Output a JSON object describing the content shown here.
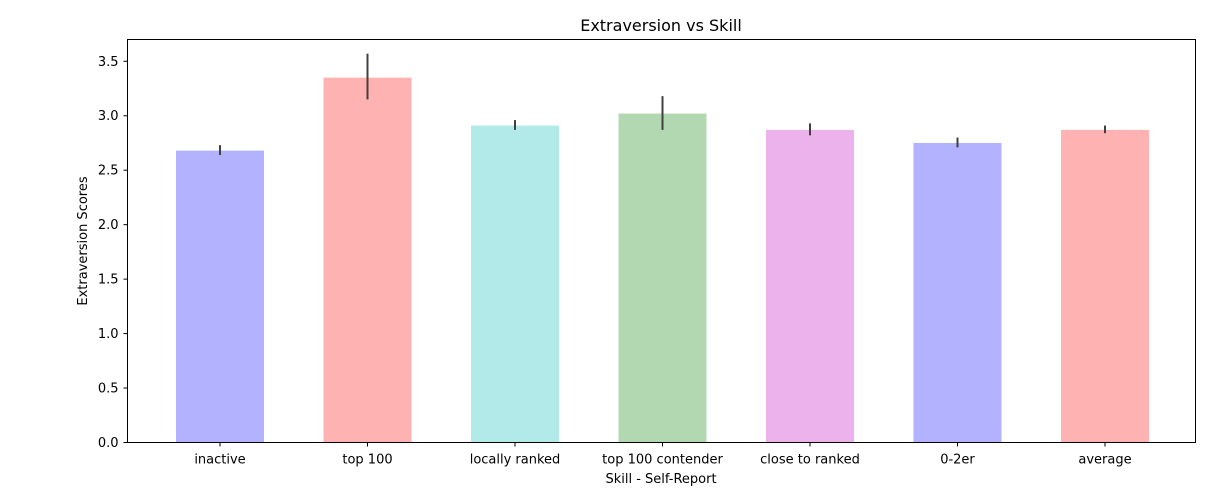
{
  "chart_data": {
    "type": "bar",
    "title": "Extraversion vs Skill",
    "xlabel": "Skill - Self-Report",
    "ylabel": "Extraversion Scores",
    "categories": [
      "inactive",
      "top 100",
      "locally ranked",
      "top 100 contender",
      "close to ranked",
      "0-2er",
      "average"
    ],
    "values": [
      2.68,
      3.35,
      2.91,
      3.02,
      2.87,
      2.75,
      2.87
    ],
    "error_low": [
      2.64,
      3.15,
      2.87,
      2.87,
      2.82,
      2.71,
      2.84
    ],
    "error_high": [
      2.73,
      3.57,
      2.96,
      3.18,
      2.93,
      2.8,
      2.91
    ],
    "colors": [
      "#b2b2ff",
      "#ffb2b2",
      "#b2eaea",
      "#b2d8b2",
      "#ecb2ec",
      "#b2b2ff",
      "#ffb2b2"
    ],
    "error_color": "#404040",
    "ylim": [
      0,
      3.7
    ],
    "yticks": [
      "0.0",
      "0.5",
      "1.0",
      "1.5",
      "2.0",
      "2.5",
      "3.0",
      "3.5"
    ],
    "grid": false
  }
}
